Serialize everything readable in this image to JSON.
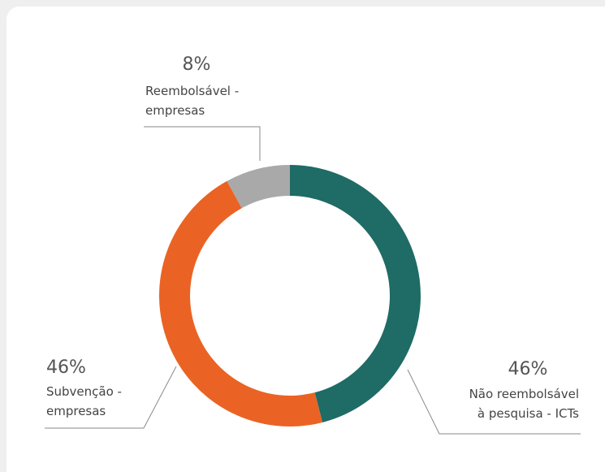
{
  "chart_data": {
    "type": "pie",
    "style": "donut",
    "slices": [
      {
        "pct_label": "46%",
        "value": 46,
        "label_lines": [
          "Não reembolsável",
          "à pesquisa - ICTs"
        ],
        "color": "#1f6b66"
      },
      {
        "pct_label": "46%",
        "value": 46,
        "label_lines": [
          "Subvenção -",
          "empresas"
        ],
        "color": "#ea6324"
      },
      {
        "pct_label": "8%",
        "value": 8,
        "label_lines": [
          "Reembolsável -",
          "empresas"
        ],
        "color": "#a9a9a9"
      }
    ],
    "legend": "none (callout labels)"
  }
}
